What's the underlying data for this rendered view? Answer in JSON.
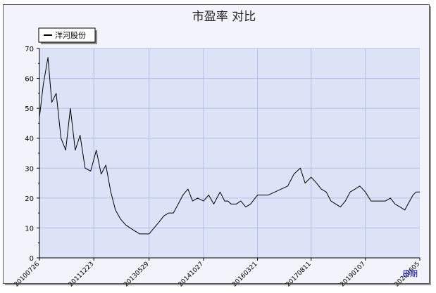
{
  "chart_data": {
    "type": "line",
    "title": "市盈率  对比",
    "xlabel": "日期",
    "ylabel": "",
    "ylim": [
      0,
      70
    ],
    "y_ticks": [
      0,
      10,
      20,
      30,
      40,
      50,
      60,
      70
    ],
    "x_ticks": [
      "20100726",
      "20111223",
      "20130529",
      "20141027",
      "20160321",
      "20170811",
      "20190107",
      "20200605"
    ],
    "legend": "top-left",
    "grid": true,
    "colors": {
      "plot_bg": "#dde3f7",
      "outer_bg": "#f3f3fb",
      "grid": "#b4bee6",
      "line": "#000000",
      "axis_label": "#0000a0"
    },
    "series": [
      {
        "name": "洋河股份",
        "x": [
          "2010-07-26",
          "2010-09-01",
          "2010-10-15",
          "2010-11-20",
          "2011-01-01",
          "2011-02-15",
          "2011-04-01",
          "2011-05-15",
          "2011-06-30",
          "2011-08-15",
          "2011-10-01",
          "2011-11-23",
          "2012-01-15",
          "2012-03-01",
          "2012-04-15",
          "2012-06-01",
          "2012-07-15",
          "2012-09-01",
          "2012-10-20",
          "2012-12-01",
          "2013-01-15",
          "2013-03-01",
          "2013-05-29",
          "2013-07-15",
          "2013-09-01",
          "2013-10-15",
          "2013-12-01",
          "2014-01-15",
          "2014-03-01",
          "2014-04-15",
          "2014-06-01",
          "2014-07-15",
          "2014-09-01",
          "2014-10-27",
          "2014-12-15",
          "2015-02-01",
          "2015-04-01",
          "2015-05-15",
          "2015-06-15",
          "2015-07-15",
          "2015-09-01",
          "2015-10-15",
          "2015-12-01",
          "2016-01-15",
          "2016-03-21",
          "2016-05-15",
          "2016-07-01",
          "2016-09-01",
          "2016-11-01",
          "2017-01-01",
          "2017-03-01",
          "2017-05-01",
          "2017-06-15",
          "2017-08-11",
          "2017-10-01",
          "2017-11-15",
          "2018-01-01",
          "2018-02-15",
          "2018-04-01",
          "2018-05-15",
          "2018-07-01",
          "2018-08-15",
          "2018-10-01",
          "2018-11-15",
          "2019-01-07",
          "2019-03-01",
          "2019-04-15",
          "2019-06-01",
          "2019-07-15",
          "2019-09-01",
          "2019-10-15",
          "2019-12-01",
          "2020-01-15",
          "2020-03-01",
          "2020-04-01",
          "2020-05-01",
          "2020-06-05"
        ],
        "values": [
          47,
          58,
          67,
          52,
          55,
          40,
          36,
          50,
          36,
          41,
          30,
          29,
          36,
          28,
          31,
          22,
          16,
          13,
          11,
          10,
          9,
          8,
          8,
          10,
          12,
          14,
          15,
          15,
          18,
          21,
          23,
          19,
          20,
          19,
          21,
          18,
          22,
          19,
          19,
          18,
          18,
          19,
          17,
          18,
          21,
          21,
          21,
          22,
          23,
          24,
          28,
          30,
          25,
          27,
          25,
          23,
          22,
          19,
          18,
          17,
          19,
          22,
          23,
          24,
          22,
          19,
          19,
          19,
          19,
          20,
          18,
          17,
          16,
          19,
          21,
          22,
          22
        ]
      }
    ]
  }
}
